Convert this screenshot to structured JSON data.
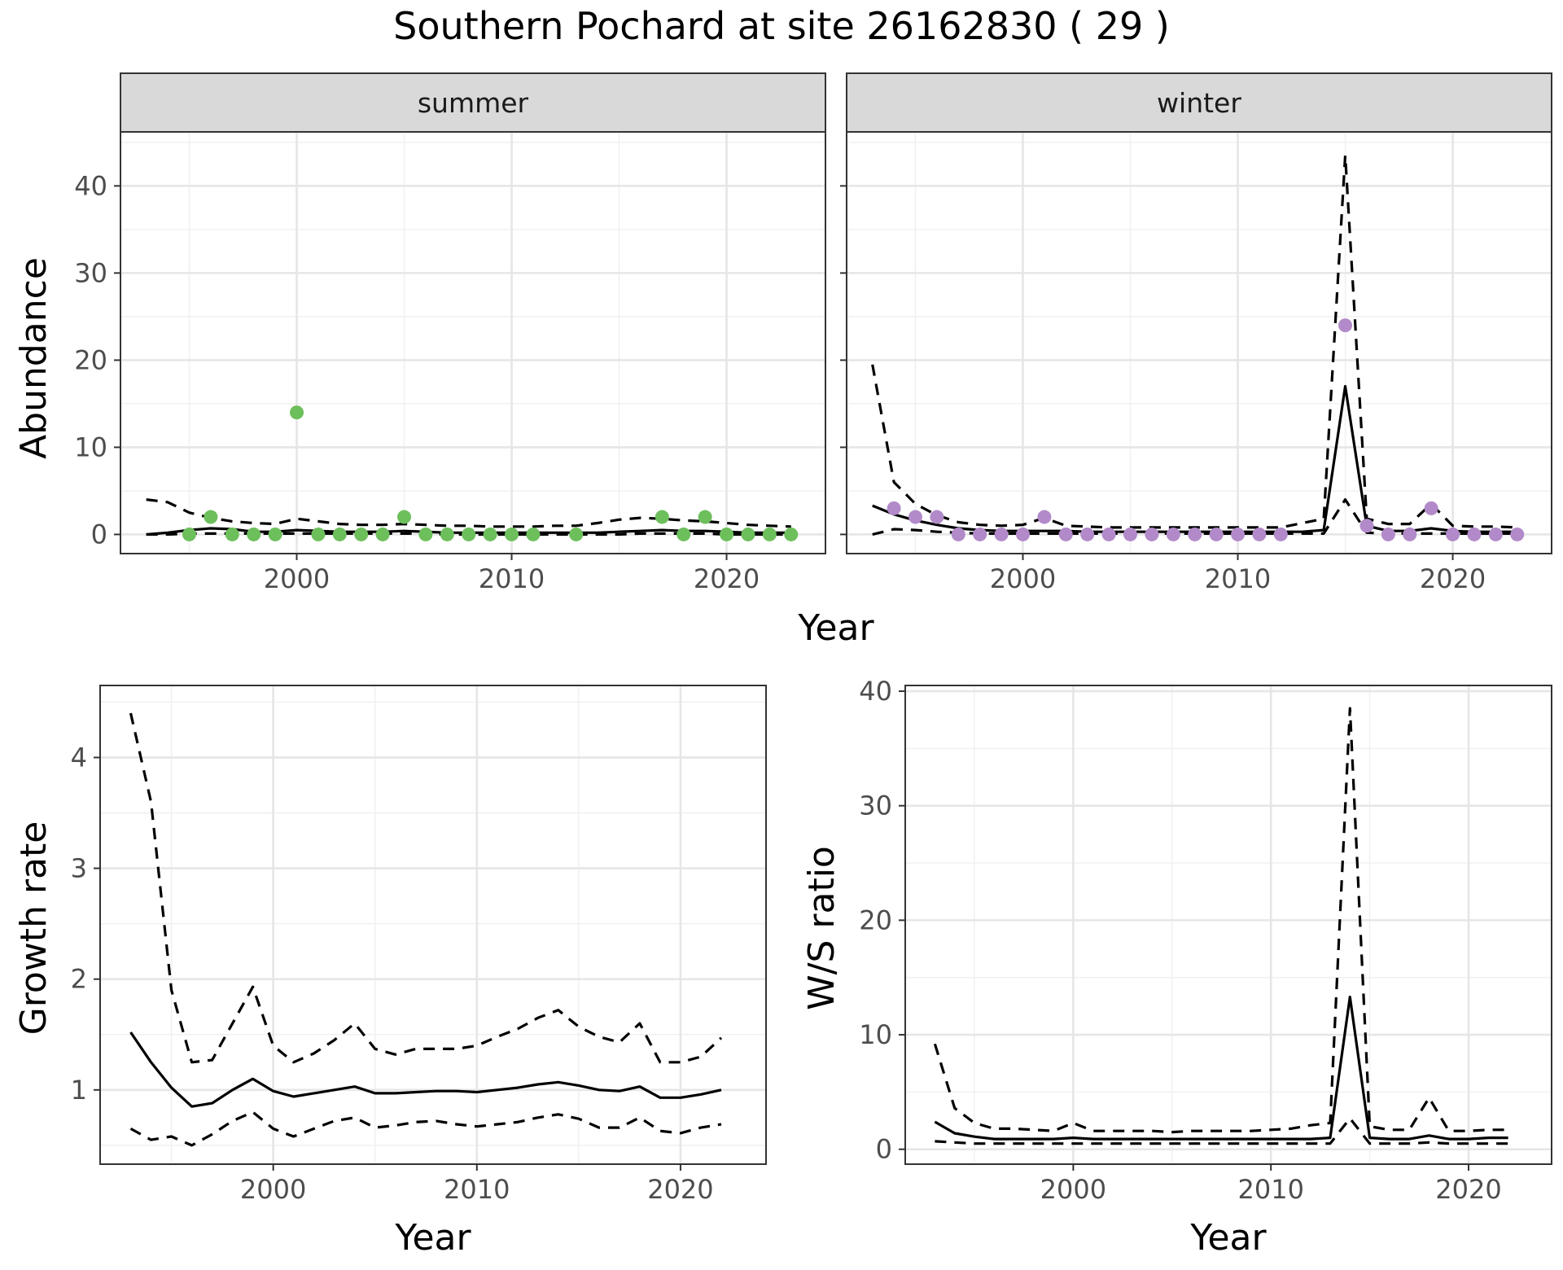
{
  "figure_title": "Southern Pochard at site 26162830 ( 29 )",
  "chart_data": [
    {
      "type": "line",
      "facet": "summer",
      "xlabel": "Year",
      "ylabel": "Abundance",
      "xlim": [
        1991.8,
        2024.6
      ],
      "ylim": [
        -2.2,
        46.2
      ],
      "xticks": [
        2000,
        2010,
        2020
      ],
      "yticks": [
        0,
        10,
        20,
        30,
        40
      ],
      "grid": true,
      "point_color": "#6dbf5c",
      "observed": {
        "x": [
          1995,
          1996,
          1997,
          1998,
          1999,
          2000,
          2001,
          2002,
          2003,
          2004,
          2005,
          2006,
          2007,
          2008,
          2009,
          2010,
          2011,
          2013,
          2017,
          2018,
          2019,
          2020,
          2021,
          2022,
          2023
        ],
        "y": [
          0,
          2,
          0,
          0,
          0,
          14,
          0,
          0,
          0,
          0,
          2,
          0,
          0,
          0,
          0,
          0,
          0,
          0,
          2,
          0,
          2,
          0,
          0,
          0,
          0
        ]
      },
      "series": [
        {
          "style": "solid",
          "x": [
            1993,
            1994,
            1995,
            1996,
            1997,
            1998,
            1999,
            2000,
            2001,
            2002,
            2003,
            2004,
            2005,
            2006,
            2007,
            2008,
            2009,
            2010,
            2011,
            2012,
            2013,
            2014,
            2015,
            2016,
            2017,
            2018,
            2019,
            2020,
            2021,
            2022,
            2023
          ],
          "y": [
            0.0,
            0.2,
            0.5,
            0.7,
            0.6,
            0.3,
            0.3,
            0.5,
            0.4,
            0.3,
            0.3,
            0.3,
            0.4,
            0.3,
            0.2,
            0.2,
            0.2,
            0.2,
            0.2,
            0.2,
            0.2,
            0.2,
            0.3,
            0.4,
            0.5,
            0.4,
            0.4,
            0.3,
            0.2,
            0.2,
            0.2
          ]
        },
        {
          "style": "dashed",
          "x": [
            1993,
            1994,
            1995,
            1996,
            1997,
            1998,
            1999,
            2000,
            2001,
            2002,
            2003,
            2004,
            2005,
            2006,
            2007,
            2008,
            2009,
            2010,
            2011,
            2012,
            2013,
            2014,
            2015,
            2016,
            2017,
            2018,
            2019,
            2020,
            2021,
            2022,
            2023
          ],
          "y": [
            4.0,
            3.7,
            2.5,
            1.9,
            1.5,
            1.3,
            1.2,
            1.8,
            1.5,
            1.2,
            1.1,
            1.1,
            1.2,
            1.1,
            1.0,
            1.0,
            0.9,
            0.9,
            0.9,
            1.0,
            1.0,
            1.3,
            1.7,
            1.9,
            1.8,
            1.6,
            1.5,
            1.3,
            1.1,
            1.0,
            0.9
          ]
        },
        {
          "style": "dashed",
          "x": [
            1993,
            1994,
            1995,
            1996,
            1997,
            1998,
            1999,
            2000,
            2001,
            2002,
            2003,
            2004,
            2005,
            2006,
            2007,
            2008,
            2009,
            2010,
            2011,
            2012,
            2013,
            2014,
            2015,
            2016,
            2017,
            2018,
            2019,
            2020,
            2021,
            2022,
            2023
          ],
          "y": [
            0.0,
            0.0,
            0.1,
            0.1,
            0.1,
            0.1,
            0.1,
            0.1,
            0.1,
            0.1,
            0.1,
            0.1,
            0.1,
            0.1,
            0.0,
            0.0,
            0.0,
            0.0,
            0.0,
            0.0,
            0.0,
            0.0,
            0.0,
            0.1,
            0.1,
            0.1,
            0.1,
            0.0,
            0.0,
            0.0,
            0.0
          ]
        }
      ]
    },
    {
      "type": "line",
      "facet": "winter",
      "xlabel": "Year",
      "ylabel": "Abundance",
      "xlim": [
        1991.8,
        2024.6
      ],
      "ylim": [
        -2.2,
        46.2
      ],
      "xticks": [
        2000,
        2010,
        2020
      ],
      "yticks": [
        0,
        10,
        20,
        30,
        40
      ],
      "grid": true,
      "point_color": "#b28ac9",
      "observed": {
        "x": [
          1994,
          1995,
          1996,
          1997,
          1998,
          1999,
          2000,
          2001,
          2002,
          2003,
          2004,
          2005,
          2006,
          2007,
          2008,
          2009,
          2010,
          2011,
          2012,
          2015,
          2016,
          2017,
          2018,
          2019,
          2020,
          2021,
          2022,
          2023
        ],
        "y": [
          3,
          2,
          2,
          0,
          0,
          0,
          0,
          2,
          0,
          0,
          0,
          0,
          0,
          0,
          0,
          0,
          0,
          0,
          0,
          24,
          1,
          0,
          0,
          3,
          0,
          0,
          0,
          0
        ]
      },
      "series": [
        {
          "style": "solid",
          "x": [
            1993,
            1994,
            1995,
            1996,
            1997,
            1998,
            1999,
            2000,
            2001,
            2002,
            2003,
            2004,
            2005,
            2006,
            2007,
            2008,
            2009,
            2010,
            2011,
            2012,
            2013,
            2014,
            2015,
            2016,
            2017,
            2018,
            2019,
            2020,
            2021,
            2022,
            2023
          ],
          "y": [
            3.3,
            2.3,
            1.6,
            1.1,
            0.7,
            0.5,
            0.4,
            0.4,
            0.4,
            0.4,
            0.3,
            0.3,
            0.3,
            0.3,
            0.3,
            0.3,
            0.3,
            0.3,
            0.3,
            0.3,
            0.3,
            0.5,
            17.0,
            1.0,
            0.4,
            0.4,
            0.7,
            0.4,
            0.3,
            0.3,
            0.3
          ]
        },
        {
          "style": "dashed",
          "x": [
            1993,
            1994,
            1995,
            1996,
            1997,
            1998,
            1999,
            2000,
            2001,
            2002,
            2003,
            2004,
            2005,
            2006,
            2007,
            2008,
            2009,
            2010,
            2011,
            2012,
            2013,
            2014,
            2015,
            2016,
            2017,
            2018,
            2019,
            2020,
            2021,
            2022,
            2023
          ],
          "y": [
            19.5,
            6.0,
            3.5,
            2.2,
            1.4,
            1.1,
            1.0,
            1.1,
            1.9,
            1.0,
            0.9,
            0.8,
            0.8,
            0.8,
            0.8,
            0.8,
            0.8,
            0.8,
            0.8,
            0.8,
            1.3,
            1.8,
            43.5,
            1.8,
            1.2,
            1.2,
            3.5,
            1.0,
            0.9,
            0.9,
            0.8
          ]
        },
        {
          "style": "dashed",
          "x": [
            1993,
            1994,
            1995,
            1996,
            1997,
            1998,
            1999,
            2000,
            2001,
            2002,
            2003,
            2004,
            2005,
            2006,
            2007,
            2008,
            2009,
            2010,
            2011,
            2012,
            2013,
            2014,
            2015,
            2016,
            2017,
            2018,
            2019,
            2020,
            2021,
            2022,
            2023
          ],
          "y": [
            0.0,
            0.6,
            0.5,
            0.3,
            0.2,
            0.1,
            0.1,
            0.1,
            0.1,
            0.1,
            0.1,
            0.1,
            0.1,
            0.1,
            0.1,
            0.1,
            0.1,
            0.1,
            0.1,
            0.1,
            0.1,
            0.1,
            4.0,
            0.2,
            0.1,
            0.1,
            0.1,
            0.1,
            0.1,
            0.1,
            0.1
          ]
        }
      ]
    },
    {
      "type": "line",
      "xlabel": "Year",
      "ylabel": "Growth rate",
      "xlim": [
        1991.5,
        2024.2
      ],
      "ylim": [
        0.33,
        4.65
      ],
      "xticks": [
        2000,
        2010,
        2020
      ],
      "yticks": [
        1,
        2,
        3,
        4
      ],
      "grid": true,
      "series": [
        {
          "style": "solid",
          "x": [
            1993,
            1994,
            1995,
            1996,
            1997,
            1998,
            1999,
            2000,
            2001,
            2002,
            2003,
            2004,
            2005,
            2006,
            2007,
            2008,
            2009,
            2010,
            2011,
            2012,
            2013,
            2014,
            2015,
            2016,
            2017,
            2018,
            2019,
            2020,
            2021,
            2022
          ],
          "y": [
            1.52,
            1.25,
            1.02,
            0.85,
            0.88,
            1.0,
            1.1,
            0.99,
            0.94,
            0.97,
            1.0,
            1.03,
            0.97,
            0.97,
            0.98,
            0.99,
            0.99,
            0.98,
            1.0,
            1.02,
            1.05,
            1.07,
            1.04,
            1.0,
            0.99,
            1.03,
            0.93,
            0.93,
            0.96,
            1.0
          ]
        },
        {
          "style": "dashed",
          "x": [
            1993,
            1994,
            1995,
            1996,
            1997,
            1998,
            1999,
            2000,
            2001,
            2002,
            2003,
            2004,
            2005,
            2006,
            2007,
            2008,
            2009,
            2010,
            2011,
            2012,
            2013,
            2014,
            2015,
            2016,
            2017,
            2018,
            2019,
            2020,
            2021,
            2022
          ],
          "y": [
            4.4,
            3.6,
            1.9,
            1.25,
            1.27,
            1.6,
            1.93,
            1.4,
            1.25,
            1.33,
            1.45,
            1.6,
            1.37,
            1.32,
            1.37,
            1.37,
            1.37,
            1.4,
            1.48,
            1.55,
            1.65,
            1.72,
            1.57,
            1.48,
            1.43,
            1.6,
            1.25,
            1.25,
            1.3,
            1.47
          ]
        },
        {
          "style": "dashed",
          "x": [
            1993,
            1994,
            1995,
            1996,
            1997,
            1998,
            1999,
            2000,
            2001,
            2002,
            2003,
            2004,
            2005,
            2006,
            2007,
            2008,
            2009,
            2010,
            2011,
            2012,
            2013,
            2014,
            2015,
            2016,
            2017,
            2018,
            2019,
            2020,
            2021,
            2022
          ],
          "y": [
            0.65,
            0.55,
            0.58,
            0.5,
            0.6,
            0.72,
            0.8,
            0.65,
            0.58,
            0.65,
            0.72,
            0.75,
            0.66,
            0.68,
            0.71,
            0.72,
            0.69,
            0.67,
            0.69,
            0.71,
            0.75,
            0.78,
            0.74,
            0.66,
            0.66,
            0.75,
            0.63,
            0.61,
            0.66,
            0.69
          ]
        }
      ]
    },
    {
      "type": "line",
      "xlabel": "Year",
      "ylabel": "W/S ratio",
      "xlim": [
        1991.5,
        2024.2
      ],
      "ylim": [
        -1.3,
        40.5
      ],
      "xticks": [
        2000,
        2010,
        2020
      ],
      "yticks": [
        0,
        10,
        20,
        30,
        40
      ],
      "grid": true,
      "series": [
        {
          "style": "solid",
          "x": [
            1993,
            1994,
            1995,
            1996,
            1997,
            1998,
            1999,
            2000,
            2001,
            2002,
            2003,
            2004,
            2005,
            2006,
            2007,
            2008,
            2009,
            2010,
            2011,
            2012,
            2013,
            2014,
            2015,
            2016,
            2017,
            2018,
            2019,
            2020,
            2021,
            2022
          ],
          "y": [
            2.4,
            1.4,
            1.1,
            0.9,
            0.9,
            0.9,
            0.9,
            1.0,
            0.9,
            0.9,
            0.9,
            0.9,
            0.9,
            0.9,
            0.9,
            0.9,
            0.9,
            0.9,
            0.9,
            0.9,
            1.0,
            13.3,
            1.0,
            0.9,
            0.9,
            1.2,
            0.9,
            0.9,
            1.0,
            1.0
          ]
        },
        {
          "style": "dashed",
          "x": [
            1993,
            1994,
            1995,
            1996,
            1997,
            1998,
            1999,
            2000,
            2001,
            2002,
            2003,
            2004,
            2005,
            2006,
            2007,
            2008,
            2009,
            2010,
            2011,
            2012,
            2013,
            2014,
            2015,
            2016,
            2017,
            2018,
            2019,
            2020,
            2021,
            2022
          ],
          "y": [
            9.2,
            3.6,
            2.3,
            1.8,
            1.8,
            1.7,
            1.6,
            2.3,
            1.6,
            1.6,
            1.6,
            1.6,
            1.5,
            1.6,
            1.6,
            1.6,
            1.6,
            1.7,
            1.8,
            2.1,
            2.3,
            38.5,
            2.0,
            1.7,
            1.7,
            4.5,
            1.6,
            1.6,
            1.7,
            1.7
          ]
        },
        {
          "style": "dashed",
          "x": [
            1993,
            1994,
            1995,
            1996,
            1997,
            1998,
            1999,
            2000,
            2001,
            2002,
            2003,
            2004,
            2005,
            2006,
            2007,
            2008,
            2009,
            2010,
            2011,
            2012,
            2013,
            2014,
            2015,
            2016,
            2017,
            2018,
            2019,
            2020,
            2021,
            2022
          ],
          "y": [
            0.7,
            0.6,
            0.5,
            0.5,
            0.5,
            0.5,
            0.5,
            0.5,
            0.5,
            0.5,
            0.5,
            0.5,
            0.5,
            0.5,
            0.5,
            0.5,
            0.5,
            0.5,
            0.5,
            0.5,
            0.5,
            2.7,
            0.5,
            0.5,
            0.5,
            0.6,
            0.5,
            0.5,
            0.5,
            0.5
          ]
        }
      ]
    }
  ]
}
